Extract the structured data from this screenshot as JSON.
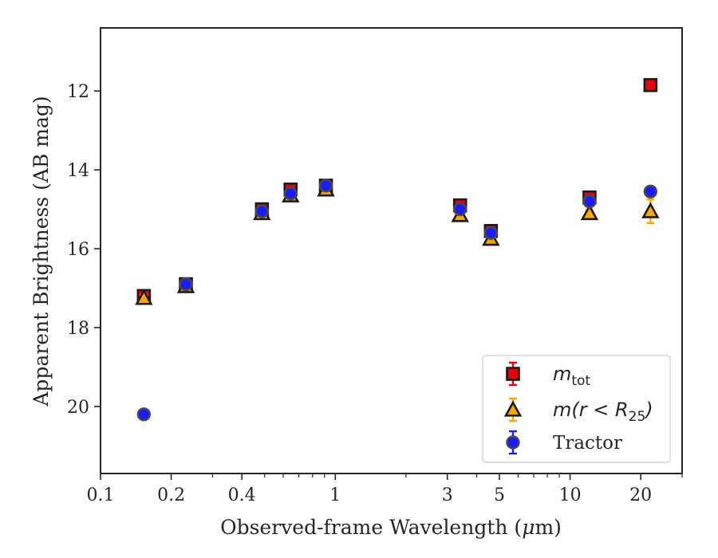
{
  "chart_data": {
    "type": "scatter",
    "xlabel_prefix": "Observed-frame Wavelength (",
    "xlabel_unit_mu": "μ",
    "xlabel_unit_rest": "m)",
    "ylabel": "Apparent Brightness (AB mag)",
    "x_scale": "log",
    "xlim": [
      0.1,
      30
    ],
    "ylim": [
      21.7,
      10.4
    ],
    "y_inverted": true,
    "x_ticks": [
      0.1,
      0.2,
      0.4,
      1,
      3,
      5,
      10,
      20
    ],
    "x_tick_labels": [
      "0.1",
      "0.2",
      "0.4",
      "1",
      "3",
      "5",
      "10",
      "20"
    ],
    "y_ticks": [
      12,
      14,
      16,
      18,
      20
    ],
    "y_tick_labels": [
      "12",
      "14",
      "16",
      "18",
      "20"
    ],
    "grid": false,
    "legend_position": "bottom-right",
    "series": [
      {
        "key": "mtot",
        "marker": "square",
        "color": "#e8000b",
        "edge": "#1a1a1a",
        "ecolor": "#e8000b",
        "x": [
          0.153,
          0.231,
          0.487,
          0.645,
          0.912,
          3.4,
          4.6,
          12.1,
          22.0
        ],
        "y": [
          17.2,
          16.9,
          15.0,
          14.5,
          14.4,
          14.9,
          15.55,
          14.7,
          11.85
        ],
        "yerr": [
          0.08,
          0.06,
          0.04,
          0.04,
          0.04,
          0.04,
          0.05,
          0.06,
          0.05
        ]
      },
      {
        "key": "mr25",
        "marker": "triangle",
        "color": "#ffa500",
        "edge": "#1a1a1a",
        "ecolor": "#ffa500",
        "x": [
          0.153,
          0.231,
          0.487,
          0.645,
          0.912,
          3.4,
          4.6,
          12.1,
          22.0
        ],
        "y": [
          17.25,
          16.95,
          15.1,
          14.65,
          14.5,
          15.15,
          15.75,
          15.1,
          15.05
        ],
        "yerr": [
          0.08,
          0.06,
          0.04,
          0.04,
          0.04,
          0.04,
          0.05,
          0.07,
          0.3
        ]
      },
      {
        "key": "tractor",
        "marker": "circle",
        "color": "#1a1aff",
        "edge": "#4a4a4a",
        "ecolor": "#1a1aff",
        "x": [
          0.153,
          0.231,
          0.487,
          0.645,
          0.912,
          3.4,
          4.6,
          12.1,
          22.0
        ],
        "y": [
          20.2,
          16.9,
          15.05,
          14.6,
          14.4,
          15.0,
          15.6,
          14.8,
          14.55
        ],
        "yerr": [
          0.06,
          0.05,
          0.04,
          0.04,
          0.04,
          0.04,
          0.05,
          0.06,
          0.08
        ]
      }
    ],
    "legend": [
      {
        "series": "mtot",
        "math": "m",
        "sub": "tot",
        "text": ""
      },
      {
        "series": "mr25",
        "math": "m(r < R",
        "sub": "25",
        "math_after": ")",
        "text": ""
      },
      {
        "series": "tractor",
        "math": "",
        "sub": "",
        "text": "Tractor"
      }
    ]
  }
}
